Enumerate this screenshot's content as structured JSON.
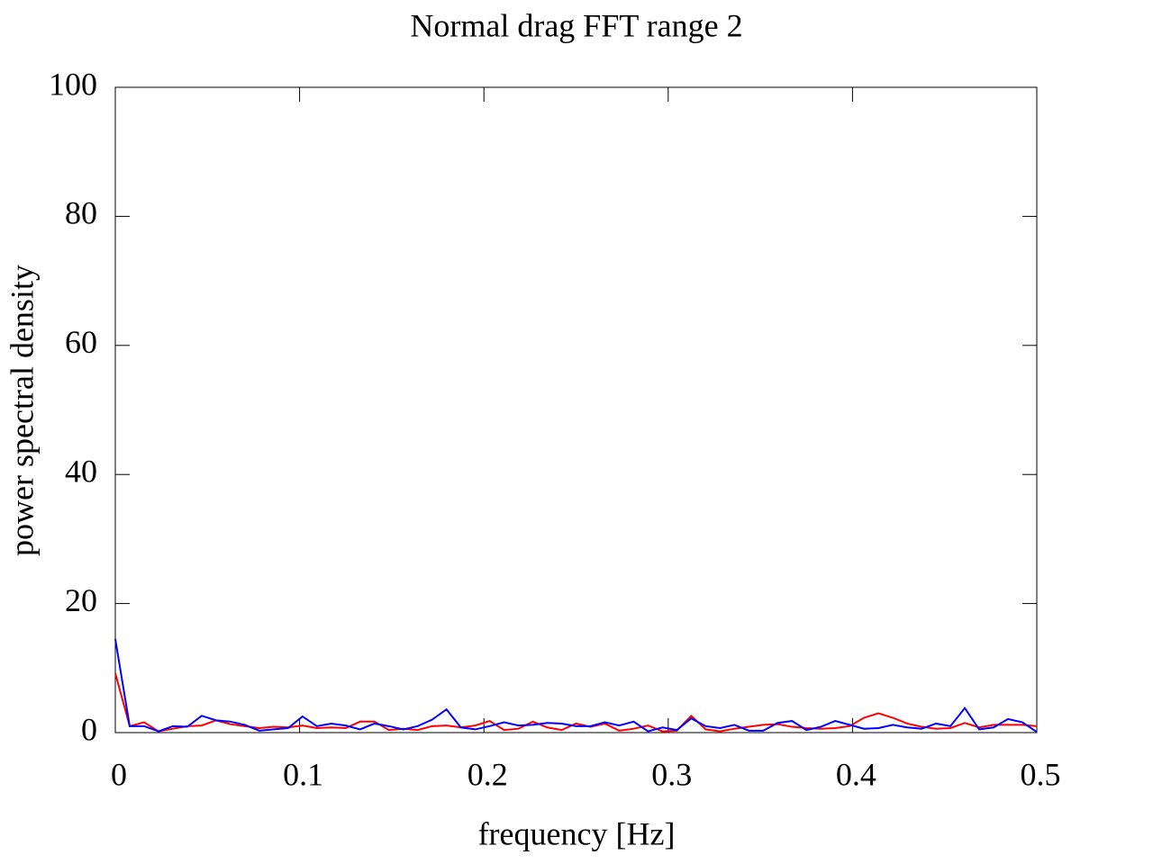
{
  "chart_data": {
    "type": "line",
    "title": "Normal drag FFT range 2",
    "xlabel": "frequency [Hz]",
    "ylabel": "power spectral density",
    "x": [
      0,
      0.0078125,
      0.015625,
      0.0234375,
      0.03125,
      0.0390625,
      0.046875,
      0.0546875,
      0.0625,
      0.0703125,
      0.078125,
      0.0859375,
      0.09375,
      0.1015625,
      0.109375,
      0.1171875,
      0.125,
      0.1328125,
      0.140625,
      0.1484375,
      0.15625,
      0.1640625,
      0.171875,
      0.1796875,
      0.1875,
      0.1953125,
      0.203125,
      0.2109375,
      0.21875,
      0.2265625,
      0.234375,
      0.2421875,
      0.25,
      0.2578125,
      0.265625,
      0.2734375,
      0.28125,
      0.2890625,
      0.296875,
      0.3046875,
      0.3125,
      0.3203125,
      0.328125,
      0.3359375,
      0.34375,
      0.3515625,
      0.359375,
      0.3671875,
      0.375,
      0.3828125,
      0.390625,
      0.3984375,
      0.40625,
      0.4140625,
      0.421875,
      0.4296875,
      0.4375,
      0.4453125,
      0.453125,
      0.4609375,
      0.46875,
      0.4765625,
      0.484375,
      0.4921875,
      0.5
    ],
    "series": [
      {
        "color": "#ff0000",
        "values": [
          9.2,
          1,
          1.6,
          0.2,
          0.6,
          1,
          1.1,
          1.9,
          1.3,
          1,
          0.7,
          0.9,
          0.8,
          1.1,
          0.7,
          0.8,
          0.7,
          1.7,
          1.7,
          0.4,
          0.6,
          0.4,
          1,
          1.1,
          0.8,
          1.1,
          1.8,
          0.4,
          0.6,
          1.7,
          0.8,
          0.4,
          1.4,
          0.9,
          1.4,
          0.3,
          0.6,
          1.1,
          0.2,
          0.3,
          2.6,
          0.5,
          0.2,
          0.6,
          0.9,
          1.2,
          1.3,
          0.9,
          0.7,
          0.6,
          0.7,
          1,
          2.3,
          3,
          2.3,
          1.4,
          0.9,
          0.6,
          0.7,
          1.5,
          0.8,
          1.2,
          1.2,
          1.2,
          1
        ]
      },
      {
        "color": "#0000ff",
        "values": [
          14.5,
          1,
          1,
          0.2,
          1,
          0.9,
          2.6,
          1.9,
          1.7,
          1.2,
          0.3,
          0.5,
          0.7,
          2.5,
          1,
          1.4,
          1.1,
          0.5,
          1.4,
          1,
          0.5,
          1,
          2,
          3.6,
          0.8,
          0.5,
          1,
          1.6,
          1.1,
          1.2,
          1.5,
          1.4,
          1,
          1,
          1.6,
          1.1,
          1.7,
          0.2,
          0.8,
          0.4,
          2.2,
          1,
          0.7,
          1.2,
          0.3,
          0.3,
          1.5,
          1.8,
          0.4,
          0.9,
          1.8,
          1.2,
          0.6,
          0.7,
          1.2,
          0.8,
          0.6,
          1.4,
          1,
          3.8,
          0.5,
          0.8,
          2.1,
          1.6,
          0.1
        ]
      }
    ],
    "xlim": [
      0,
      0.5
    ],
    "xticks": [
      0,
      0.1,
      0.2,
      0.3,
      0.4,
      0.5
    ],
    "ylim": [
      0,
      100
    ],
    "yticks": [
      0,
      20,
      40,
      60,
      80,
      100
    ]
  }
}
